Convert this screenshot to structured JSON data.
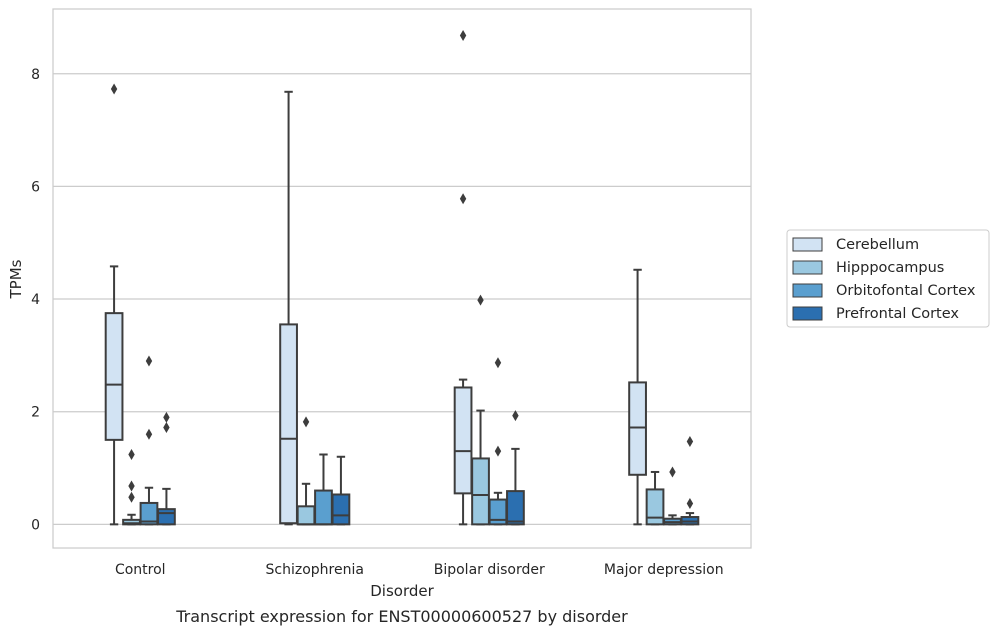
{
  "chart_data": {
    "type": "boxplot",
    "title": "",
    "caption": "Transcript expression for ENST00000600527 by disorder",
    "xlabel": "Disorder",
    "ylabel": "TPMs",
    "ylim": [
      -0.42,
      9.15
    ],
    "yticks": [
      "0",
      "2",
      "4",
      "6",
      "8"
    ],
    "ytick_values": [
      0,
      2,
      4,
      6,
      8
    ],
    "grid": "horizontal",
    "legend_position": "right",
    "categories": [
      "Control",
      "Schizophrenia",
      "Bipolar disorder",
      "Major depression"
    ],
    "series": [
      {
        "name": "Cerebellum",
        "color": "#d2e3f3",
        "boxes": [
          {
            "q1": 1.5,
            "median": 2.48,
            "q3": 3.75,
            "whislo": 0.0,
            "whishi": 4.58,
            "fliers": [
              7.73
            ]
          },
          {
            "q1": 0.02,
            "median": 1.52,
            "q3": 3.55,
            "whislo": 0.0,
            "whishi": 7.68,
            "fliers": []
          },
          {
            "q1": 0.55,
            "median": 1.3,
            "q3": 2.43,
            "whislo": 0.0,
            "whishi": 2.57,
            "fliers": [
              5.78,
              8.68
            ]
          },
          {
            "q1": 0.88,
            "median": 1.72,
            "q3": 2.52,
            "whislo": 0.0,
            "whishi": 4.52,
            "fliers": []
          }
        ]
      },
      {
        "name": "Hipppocampus",
        "color": "#9ac8e0",
        "boxes": [
          {
            "q1": 0.0,
            "median": 0.02,
            "q3": 0.08,
            "whislo": 0.0,
            "whishi": 0.17,
            "fliers": [
              0.48,
              0.68,
              1.24
            ]
          },
          {
            "q1": 0.0,
            "median": 0.0,
            "q3": 0.32,
            "whislo": 0.0,
            "whishi": 0.72,
            "fliers": [
              1.82
            ]
          },
          {
            "q1": 0.0,
            "median": 0.52,
            "q3": 1.17,
            "whislo": 0.0,
            "whishi": 2.02,
            "fliers": [
              3.98
            ]
          },
          {
            "q1": 0.0,
            "median": 0.12,
            "q3": 0.62,
            "whislo": 0.0,
            "whishi": 0.93,
            "fliers": []
          }
        ]
      },
      {
        "name": "Orbitofontal Cortex",
        "color": "#5a9fcf",
        "boxes": [
          {
            "q1": 0.0,
            "median": 0.05,
            "q3": 0.38,
            "whislo": 0.0,
            "whishi": 0.65,
            "fliers": [
              1.6,
              2.9
            ]
          },
          {
            "q1": 0.0,
            "median": 0.0,
            "q3": 0.6,
            "whislo": 0.0,
            "whishi": 1.24,
            "fliers": []
          },
          {
            "q1": 0.0,
            "median": 0.08,
            "q3": 0.44,
            "whislo": 0.0,
            "whishi": 0.56,
            "fliers": [
              1.3,
              2.87
            ]
          },
          {
            "q1": 0.0,
            "median": 0.04,
            "q3": 0.1,
            "whislo": 0.0,
            "whishi": 0.16,
            "fliers": [
              0.93
            ]
          }
        ]
      },
      {
        "name": "Prefrontal Cortex",
        "color": "#2b6fb0",
        "boxes": [
          {
            "q1": 0.0,
            "median": 0.2,
            "q3": 0.27,
            "whislo": 0.0,
            "whishi": 0.63,
            "fliers": [
              1.72,
              1.9
            ]
          },
          {
            "q1": 0.0,
            "median": 0.16,
            "q3": 0.53,
            "whislo": 0.0,
            "whishi": 1.2,
            "fliers": []
          },
          {
            "q1": 0.0,
            "median": 0.05,
            "q3": 0.59,
            "whislo": 0.0,
            "whishi": 1.34,
            "fliers": [
              1.93
            ]
          },
          {
            "q1": 0.0,
            "median": 0.05,
            "q3": 0.13,
            "whislo": 0.0,
            "whishi": 0.2,
            "fliers": [
              0.37,
              1.47
            ]
          }
        ]
      }
    ]
  }
}
